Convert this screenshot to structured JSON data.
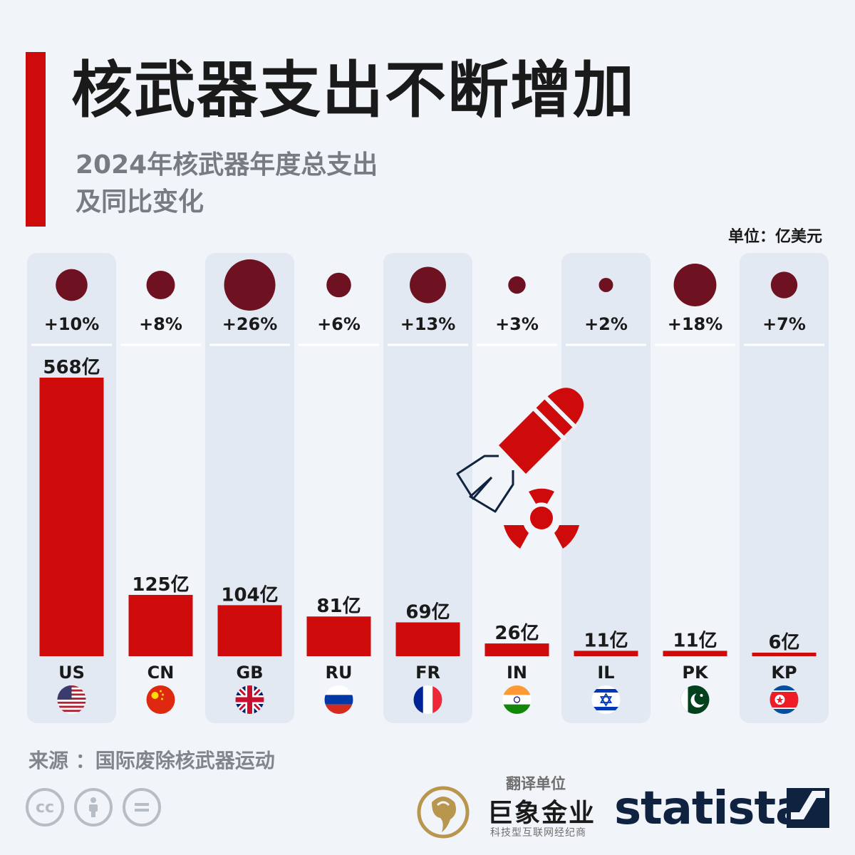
{
  "title": "核武器支出不断增加",
  "subtitle": [
    "2024年核武器年度总支出",
    "及同比变化"
  ],
  "unit_label": "单位：亿美元",
  "source": "来源 ：国际废除核武器运动",
  "translator": {
    "label": "翻译单位",
    "name": "巨象金业",
    "tagline": "科技型互联网经纪商"
  },
  "brand": "statista",
  "license_icons": [
    "cc-icon",
    "attribution-icon",
    "no-derivatives-icon"
  ],
  "colors": {
    "bar": "#cf0a0a",
    "bubble": "#6e1221",
    "accent": "#cf0a0a",
    "brand": "#0f2341"
  },
  "chart_data": {
    "type": "bar",
    "categories": [
      "US",
      "CN",
      "GB",
      "RU",
      "FR",
      "IN",
      "IL",
      "PK",
      "KP"
    ],
    "values": [
      568,
      125,
      104,
      81,
      69,
      26,
      11,
      11,
      6
    ],
    "value_labels": [
      "568亿",
      "125亿",
      "104亿",
      "81亿",
      "69亿",
      "26亿",
      "11亿",
      "11亿",
      "6亿"
    ],
    "change_pct": [
      10,
      8,
      26,
      6,
      13,
      3,
      2,
      18,
      7
    ],
    "change_labels": [
      "+10%",
      "+8%",
      "+26%",
      "+6%",
      "+13%",
      "+3%",
      "+2%",
      "+18%",
      "+7%"
    ],
    "flags": [
      "us-flag-icon",
      "cn-flag-icon",
      "gb-flag-icon",
      "ru-flag-icon",
      "fr-flag-icon",
      "in-flag-icon",
      "il-flag-icon",
      "pk-flag-icon",
      "kp-flag-icon"
    ],
    "ylim": [
      0,
      568
    ],
    "title": "核武器支出不断增加",
    "grid": false,
    "legend": "none"
  }
}
